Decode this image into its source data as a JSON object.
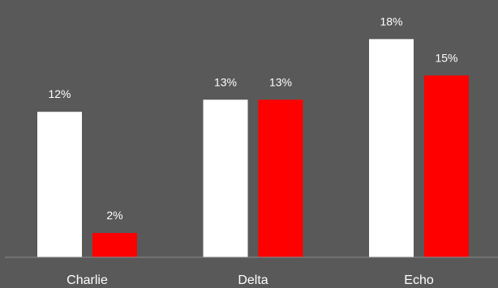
{
  "chart_data": {
    "type": "bar",
    "categories": [
      "Charlie",
      "Delta",
      "Echo"
    ],
    "series": [
      {
        "values": [
          12,
          13,
          18
        ],
        "labels": [
          "12%",
          "13%",
          "18%"
        ],
        "color": "#ffffff"
      },
      {
        "values": [
          2,
          13,
          15
        ],
        "labels": [
          "2%",
          "13%",
          "15%"
        ],
        "color": "#ff0000"
      }
    ],
    "ylim": [
      0,
      20
    ],
    "grid": false,
    "legend": "none",
    "background": "#595959"
  }
}
